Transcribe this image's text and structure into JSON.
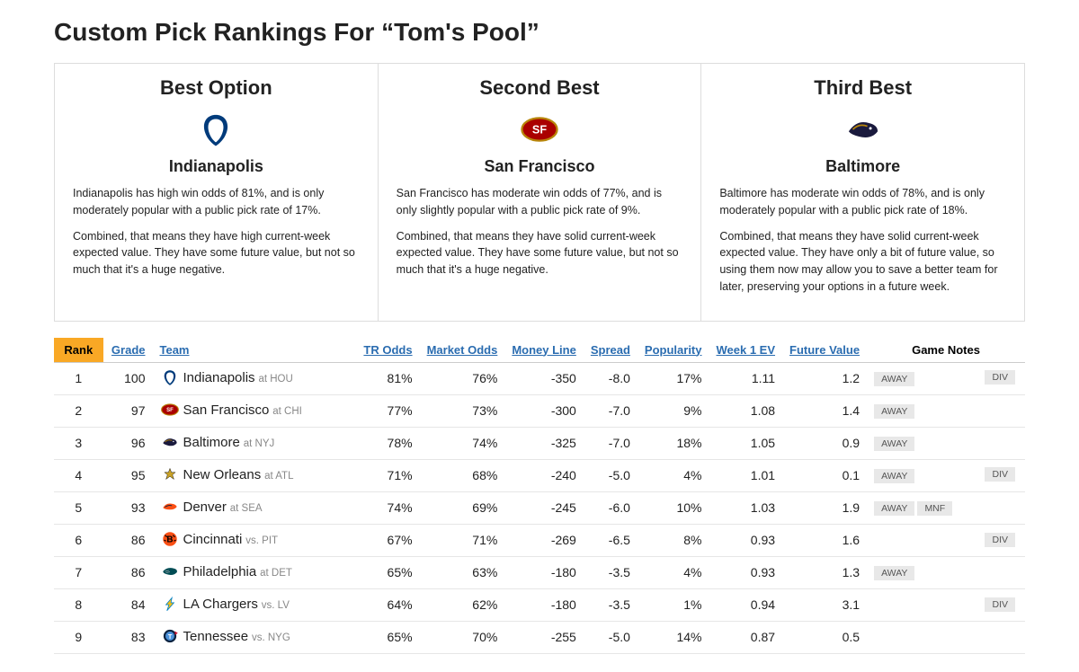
{
  "page_title": "Custom Pick Rankings For “Tom's Pool”",
  "options": [
    {
      "label": "Best Option",
      "team": "Indianapolis",
      "logo": "colts",
      "p1": "Indianapolis has high win odds of 81%, and is only moderately popular with a public pick rate of 17%.",
      "p2": "Combined, that means they have high current-week expected value. They have some future value, but not so much that it's a huge negative."
    },
    {
      "label": "Second Best",
      "team": "San Francisco",
      "logo": "49ers",
      "p1": "San Francisco has moderate win odds of 77%, and is only slightly popular with a public pick rate of 9%.",
      "p2": "Combined, that means they have solid current-week expected value. They have some future value, but not so much that it's a huge negative."
    },
    {
      "label": "Third Best",
      "team": "Baltimore",
      "logo": "ravens",
      "p1": "Baltimore has moderate win odds of 78%, and is only moderately popular with a public pick rate of 18%.",
      "p2": "Combined, that means they have solid current-week expected value. They have only a bit of future value, so using them now may allow you to save a better team for later, preserving your options in a future week."
    }
  ],
  "columns": {
    "rank": "Rank",
    "grade": "Grade",
    "team": "Team",
    "tr_odds": "TR Odds",
    "market_odds": "Market Odds",
    "money_line": "Money Line",
    "spread": "Spread",
    "popularity": "Popularity",
    "week_ev": "Week 1 EV",
    "future_value": "Future Value",
    "notes": "Game Notes"
  },
  "rows": [
    {
      "rank": "1",
      "grade": "100",
      "logo": "colts",
      "team": "Indianapolis",
      "opp": "at HOU",
      "tr": "81%",
      "mo": "76%",
      "ml": "-350",
      "sp": "-8.0",
      "pop": "17%",
      "ev": "1.11",
      "fv": "1.2",
      "away": true,
      "mnf": false,
      "div": true
    },
    {
      "rank": "2",
      "grade": "97",
      "logo": "49ers",
      "team": "San Francisco",
      "opp": "at CHI",
      "tr": "77%",
      "mo": "73%",
      "ml": "-300",
      "sp": "-7.0",
      "pop": "9%",
      "ev": "1.08",
      "fv": "1.4",
      "away": true,
      "mnf": false,
      "div": false
    },
    {
      "rank": "3",
      "grade": "96",
      "logo": "ravens",
      "team": "Baltimore",
      "opp": "at NYJ",
      "tr": "78%",
      "mo": "74%",
      "ml": "-325",
      "sp": "-7.0",
      "pop": "18%",
      "ev": "1.05",
      "fv": "0.9",
      "away": true,
      "mnf": false,
      "div": false
    },
    {
      "rank": "4",
      "grade": "95",
      "logo": "saints",
      "team": "New Orleans",
      "opp": "at ATL",
      "tr": "71%",
      "mo": "68%",
      "ml": "-240",
      "sp": "-5.0",
      "pop": "4%",
      "ev": "1.01",
      "fv": "0.1",
      "away": true,
      "mnf": false,
      "div": true
    },
    {
      "rank": "5",
      "grade": "93",
      "logo": "broncos",
      "team": "Denver",
      "opp": "at SEA",
      "tr": "74%",
      "mo": "69%",
      "ml": "-245",
      "sp": "-6.0",
      "pop": "10%",
      "ev": "1.03",
      "fv": "1.9",
      "away": true,
      "mnf": true,
      "div": false
    },
    {
      "rank": "6",
      "grade": "86",
      "logo": "bengals",
      "team": "Cincinnati",
      "opp": "vs. PIT",
      "tr": "67%",
      "mo": "71%",
      "ml": "-269",
      "sp": "-6.5",
      "pop": "8%",
      "ev": "0.93",
      "fv": "1.6",
      "away": false,
      "mnf": false,
      "div": true
    },
    {
      "rank": "7",
      "grade": "86",
      "logo": "eagles",
      "team": "Philadelphia",
      "opp": "at DET",
      "tr": "65%",
      "mo": "63%",
      "ml": "-180",
      "sp": "-3.5",
      "pop": "4%",
      "ev": "0.93",
      "fv": "1.3",
      "away": true,
      "mnf": false,
      "div": false
    },
    {
      "rank": "8",
      "grade": "84",
      "logo": "chargers",
      "team": "LA Chargers",
      "opp": "vs. LV",
      "tr": "64%",
      "mo": "62%",
      "ml": "-180",
      "sp": "-3.5",
      "pop": "1%",
      "ev": "0.94",
      "fv": "3.1",
      "away": false,
      "mnf": false,
      "div": true
    },
    {
      "rank": "9",
      "grade": "83",
      "logo": "titans",
      "team": "Tennessee",
      "opp": "vs. NYG",
      "tr": "65%",
      "mo": "70%",
      "ml": "-255",
      "sp": "-5.0",
      "pop": "14%",
      "ev": "0.87",
      "fv": "0.5",
      "away": false,
      "mnf": false,
      "div": false
    }
  ],
  "badges": {
    "away": "AWAY",
    "mnf": "MNF",
    "div": "DIV"
  }
}
